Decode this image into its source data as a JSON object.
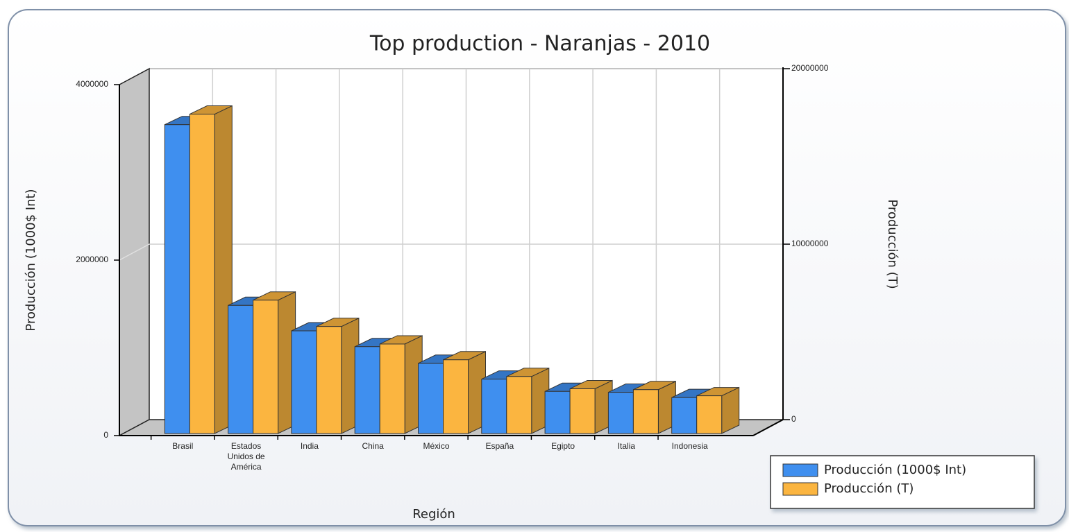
{
  "chart_data": {
    "type": "bar3d",
    "title": "Top production - Naranjas - 2010",
    "x_label": "Región",
    "y_label": "Producción (1000$ Int)",
    "y2_label": "Producción (T)",
    "categories": [
      "Brasil",
      "Estados Unidos de América",
      "India",
      "China",
      "México",
      "España",
      "Egipto",
      "Italia",
      "Indonesia"
    ],
    "series": [
      {
        "name": "Producción (1000$ Int)",
        "color": "#3f8fef",
        "values": [
          3520000,
          1460000,
          1170000,
          990000,
          800000,
          620000,
          480000,
          470000,
          410000
        ]
      },
      {
        "name": "Producción (T)",
        "color": "#fbb540",
        "axis": "y2",
        "values": [
          18200000,
          7600000,
          6100000,
          5100000,
          4200000,
          3250000,
          2550000,
          2500000,
          2150000
        ]
      }
    ],
    "ylim": [
      0,
      4000000
    ],
    "yticks": [
      0,
      2000000,
      4000000
    ],
    "y2lim": [
      0,
      20000000
    ],
    "y2ticks": [
      0,
      10000000,
      20000000
    ],
    "grid": true,
    "legend": "bottom-right"
  }
}
